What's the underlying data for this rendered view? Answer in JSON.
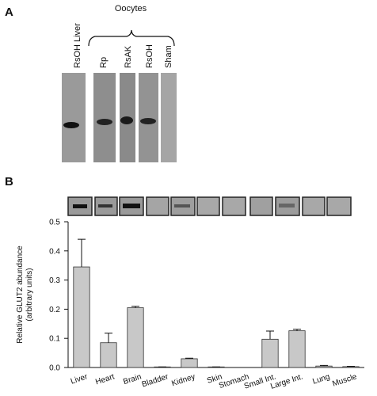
{
  "panel_a": {
    "letter": "A",
    "group_label": "Oocytes",
    "lanes": [
      "RsOH Liver",
      "Rp",
      "RsAK",
      "RsOH",
      "Sham"
    ]
  },
  "chart_data": {
    "type": "bar",
    "letter": "B",
    "ylabel": [
      "Relative GLUT2 abundance",
      "(arbitrary units)"
    ],
    "categories": [
      "Liver",
      "Heart",
      "Brain",
      "Bladder",
      "Kidney",
      "Skin",
      "Stomach",
      "Small Int.",
      "Large Int.",
      "Lung",
      "Muscle"
    ],
    "values": [
      0.345,
      0.085,
      0.205,
      0.002,
      0.03,
      0.002,
      0,
      0.097,
      0.126,
      0.005,
      0.003
    ],
    "errors": [
      0.095,
      0.033,
      0.005,
      0,
      0.002,
      0,
      0,
      0.028,
      0.005,
      0.002,
      0.001
    ],
    "color": "#c8c8c8",
    "ylim": [
      0,
      0.5
    ],
    "yticks": [
      {
        "value": 0,
        "label": "0.0"
      },
      0.1,
      0.2,
      0.3,
      0.4,
      0.5
    ]
  }
}
